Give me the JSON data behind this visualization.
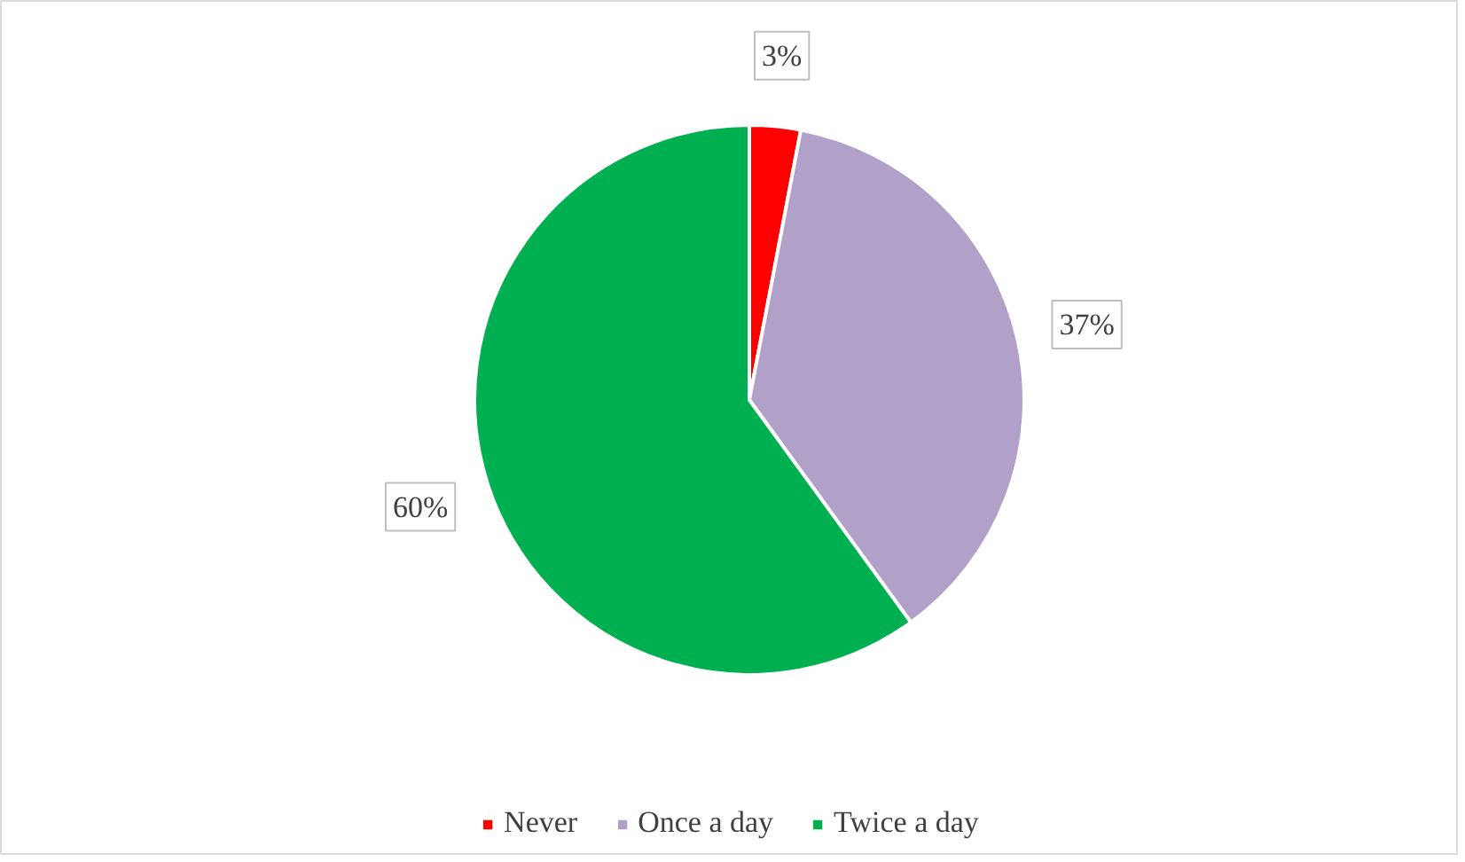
{
  "chart_data": {
    "type": "pie",
    "categories": [
      "Never",
      "Once a day",
      "Twice a day"
    ],
    "values": [
      3,
      37,
      60
    ],
    "colors": [
      "#ff0000",
      "#b1a0c7",
      "#00b050"
    ],
    "value_labels": [
      "3%",
      "37%",
      "60%"
    ],
    "legend": "bottom"
  }
}
